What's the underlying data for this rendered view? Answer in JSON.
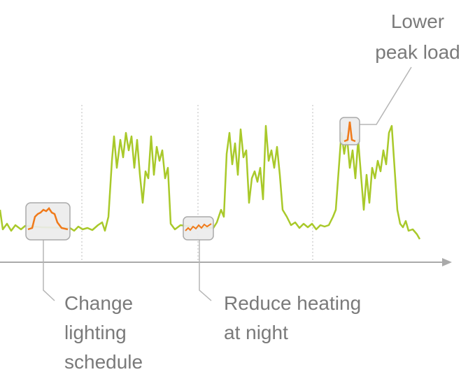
{
  "annotations": [
    {
      "lines": [
        "Lower",
        "peak load"
      ]
    },
    {
      "lines": [
        "Change",
        "lighting",
        "schedule"
      ]
    },
    {
      "lines": [
        "Reduce heating",
        "at night"
      ]
    }
  ]
}
